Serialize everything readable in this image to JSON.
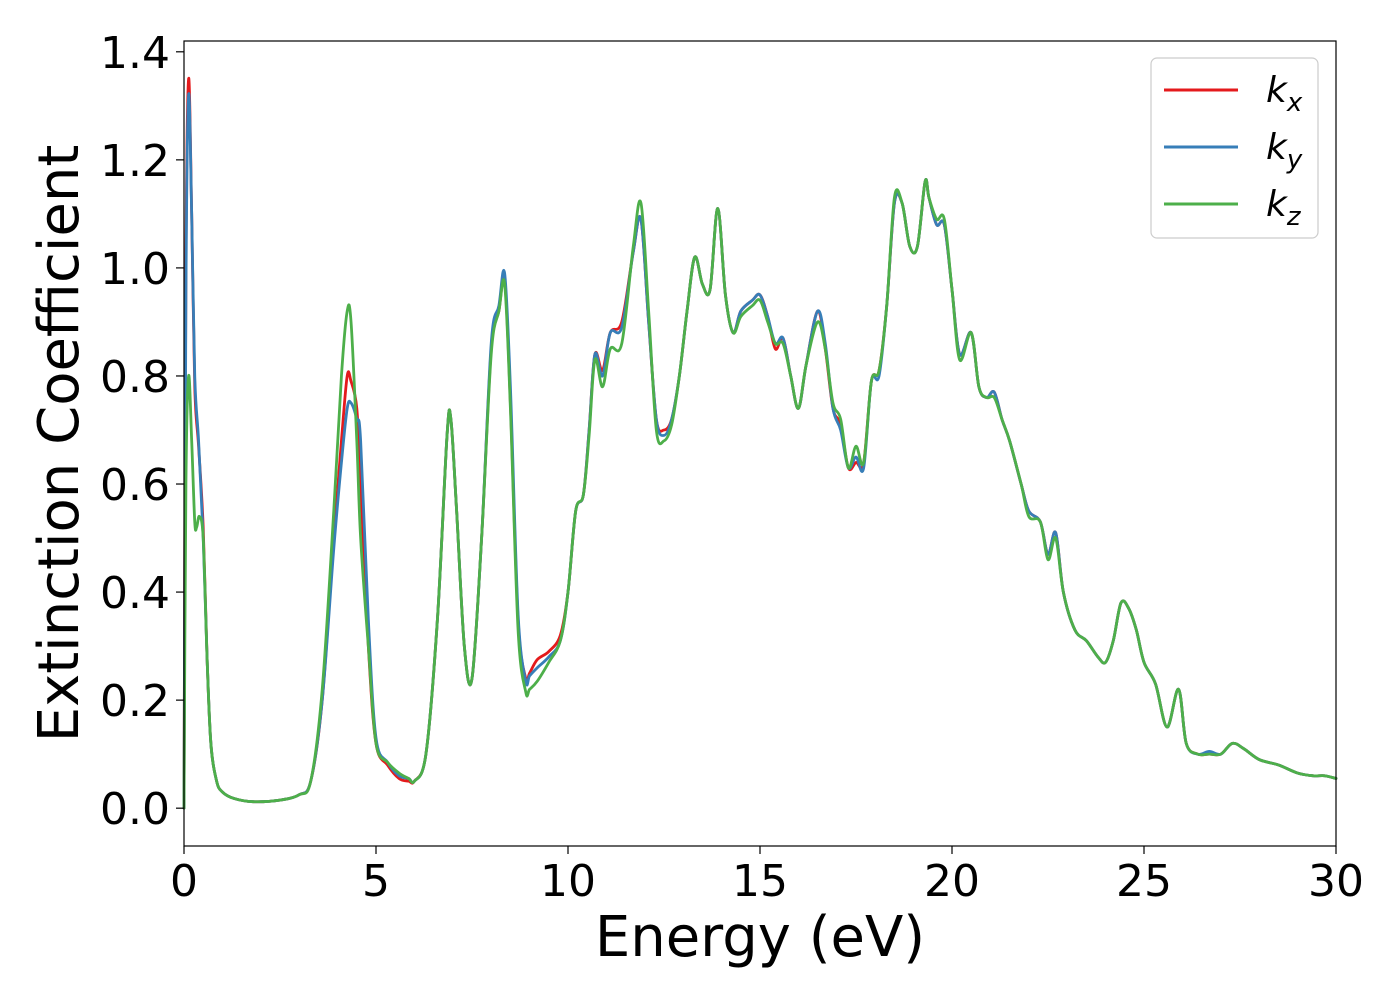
{
  "chart_data": {
    "type": "line",
    "xlabel": "Energy (eV)",
    "ylabel": "Extinction Coefficient",
    "xlim": [
      0,
      30
    ],
    "ylim": [
      -0.07,
      1.42
    ],
    "xticks": [
      "0",
      "5",
      "10",
      "15",
      "20",
      "25",
      "30"
    ],
    "yticks": [
      "0.0",
      "0.2",
      "0.4",
      "0.6",
      "0.8",
      "1.0",
      "1.2",
      "1.4"
    ],
    "grid": false,
    "legend_position": "top-right",
    "series": [
      {
        "name": "k",
        "subscript": "x",
        "color": "#e41a1c",
        "x": [
          0,
          0.05,
          0.12,
          0.2,
          0.28,
          0.38,
          0.5,
          0.6,
          0.7,
          0.85,
          1.0,
          1.3,
          1.8,
          2.5,
          3.0,
          3.3,
          3.6,
          3.9,
          4.1,
          4.25,
          4.35,
          4.5,
          4.6,
          4.8,
          5.0,
          5.3,
          5.6,
          5.85,
          6.0,
          6.3,
          6.6,
          6.85,
          6.95,
          7.1,
          7.3,
          7.5,
          7.75,
          8.0,
          8.2,
          8.35,
          8.5,
          8.7,
          8.9,
          9.0,
          9.2,
          9.5,
          9.8,
          10.0,
          10.2,
          10.4,
          10.55,
          10.7,
          10.9,
          11.1,
          11.4,
          11.7,
          11.9,
          12.1,
          12.3,
          12.5,
          12.7,
          12.9,
          13.1,
          13.3,
          13.5,
          13.7,
          13.9,
          14.1,
          14.3,
          14.5,
          14.8,
          15.0,
          15.2,
          15.4,
          15.6,
          15.8,
          16.0,
          16.2,
          16.5,
          16.7,
          16.9,
          17.1,
          17.3,
          17.5,
          17.7,
          17.9,
          18.1,
          18.3,
          18.5,
          18.7,
          18.9,
          19.1,
          19.3,
          19.4,
          19.6,
          19.8,
          20.0,
          20.2,
          20.5,
          20.7,
          20.9,
          21.1,
          21.3,
          21.5,
          21.8,
          22.0,
          22.3,
          22.5,
          22.7,
          22.9,
          23.2,
          23.5,
          23.8,
          24.0,
          24.2,
          24.4,
          24.6,
          24.8,
          25.0,
          25.3,
          25.6,
          25.9,
          26.1,
          26.4,
          26.7,
          27.0,
          27.3,
          27.6,
          28.0,
          28.5,
          29.0,
          29.4,
          29.7,
          30.0
        ],
        "y": [
          0.0,
          1.0,
          1.35,
          1.1,
          0.78,
          0.67,
          0.52,
          0.28,
          0.12,
          0.05,
          0.03,
          0.018,
          0.012,
          0.015,
          0.025,
          0.05,
          0.2,
          0.5,
          0.68,
          0.8,
          0.79,
          0.74,
          0.6,
          0.3,
          0.12,
          0.08,
          0.055,
          0.05,
          0.05,
          0.1,
          0.35,
          0.69,
          0.72,
          0.55,
          0.3,
          0.24,
          0.5,
          0.85,
          0.92,
          0.98,
          0.75,
          0.35,
          0.24,
          0.25,
          0.275,
          0.29,
          0.32,
          0.4,
          0.55,
          0.58,
          0.7,
          0.84,
          0.81,
          0.88,
          0.9,
          1.03,
          1.09,
          0.9,
          0.72,
          0.7,
          0.72,
          0.8,
          0.92,
          1.02,
          0.97,
          0.96,
          1.11,
          0.95,
          0.88,
          0.92,
          0.94,
          0.95,
          0.91,
          0.85,
          0.87,
          0.8,
          0.74,
          0.82,
          0.92,
          0.85,
          0.74,
          0.71,
          0.63,
          0.64,
          0.64,
          0.79,
          0.81,
          0.93,
          1.12,
          1.12,
          1.04,
          1.04,
          1.16,
          1.13,
          1.08,
          1.08,
          0.96,
          0.84,
          0.88,
          0.78,
          0.76,
          0.77,
          0.72,
          0.68,
          0.6,
          0.55,
          0.53,
          0.47,
          0.51,
          0.4,
          0.33,
          0.31,
          0.28,
          0.27,
          0.31,
          0.38,
          0.37,
          0.33,
          0.27,
          0.23,
          0.15,
          0.22,
          0.12,
          0.1,
          0.1,
          0.1,
          0.12,
          0.11,
          0.09,
          0.08,
          0.065,
          0.06,
          0.06,
          0.055
        ]
      },
      {
        "name": "k",
        "subscript": "y",
        "color": "#377eb8",
        "x": [
          0,
          0.05,
          0.12,
          0.2,
          0.28,
          0.38,
          0.5,
          0.6,
          0.7,
          0.85,
          1.0,
          1.3,
          1.8,
          2.5,
          3.0,
          3.3,
          3.6,
          3.9,
          4.1,
          4.25,
          4.35,
          4.5,
          4.6,
          4.8,
          5.0,
          5.3,
          5.6,
          5.85,
          6.0,
          6.3,
          6.6,
          6.85,
          6.95,
          7.1,
          7.3,
          7.5,
          7.75,
          8.0,
          8.2,
          8.35,
          8.5,
          8.7,
          8.9,
          9.0,
          9.2,
          9.5,
          9.8,
          10.0,
          10.2,
          10.4,
          10.55,
          10.7,
          10.9,
          11.1,
          11.4,
          11.7,
          11.9,
          12.1,
          12.3,
          12.5,
          12.7,
          12.9,
          13.1,
          13.3,
          13.5,
          13.7,
          13.9,
          14.1,
          14.3,
          14.5,
          14.8,
          15.0,
          15.2,
          15.4,
          15.6,
          15.8,
          16.0,
          16.2,
          16.5,
          16.7,
          16.9,
          17.1,
          17.3,
          17.5,
          17.7,
          17.9,
          18.1,
          18.3,
          18.5,
          18.7,
          18.9,
          19.1,
          19.3,
          19.4,
          19.6,
          19.8,
          20.0,
          20.2,
          20.5,
          20.7,
          20.9,
          21.1,
          21.3,
          21.5,
          21.8,
          22.0,
          22.3,
          22.5,
          22.7,
          22.9,
          23.2,
          23.5,
          23.8,
          24.0,
          24.2,
          24.4,
          24.6,
          24.8,
          25.0,
          25.3,
          25.6,
          25.9,
          26.1,
          26.4,
          26.7,
          27.0,
          27.3,
          27.6,
          28.0,
          28.5,
          29.0,
          29.4,
          29.7,
          30.0
        ],
        "y": [
          0.0,
          0.95,
          1.32,
          1.1,
          0.8,
          0.68,
          0.5,
          0.28,
          0.12,
          0.05,
          0.03,
          0.018,
          0.012,
          0.015,
          0.025,
          0.05,
          0.2,
          0.48,
          0.64,
          0.74,
          0.75,
          0.72,
          0.68,
          0.35,
          0.13,
          0.085,
          0.06,
          0.055,
          0.05,
          0.1,
          0.35,
          0.69,
          0.72,
          0.55,
          0.3,
          0.24,
          0.5,
          0.86,
          0.93,
          0.99,
          0.78,
          0.36,
          0.235,
          0.245,
          0.26,
          0.28,
          0.31,
          0.4,
          0.55,
          0.58,
          0.7,
          0.84,
          0.8,
          0.88,
          0.89,
          1.03,
          1.09,
          0.9,
          0.72,
          0.69,
          0.72,
          0.8,
          0.92,
          1.02,
          0.97,
          0.96,
          1.11,
          0.95,
          0.88,
          0.92,
          0.94,
          0.95,
          0.91,
          0.86,
          0.87,
          0.8,
          0.74,
          0.82,
          0.92,
          0.86,
          0.74,
          0.7,
          0.63,
          0.65,
          0.63,
          0.79,
          0.8,
          0.93,
          1.12,
          1.12,
          1.04,
          1.04,
          1.16,
          1.13,
          1.08,
          1.08,
          0.96,
          0.84,
          0.88,
          0.78,
          0.76,
          0.77,
          0.72,
          0.68,
          0.6,
          0.55,
          0.53,
          0.47,
          0.51,
          0.4,
          0.33,
          0.31,
          0.28,
          0.27,
          0.31,
          0.38,
          0.37,
          0.33,
          0.27,
          0.23,
          0.15,
          0.22,
          0.12,
          0.1,
          0.105,
          0.1,
          0.12,
          0.11,
          0.09,
          0.08,
          0.065,
          0.06,
          0.06,
          0.055
        ]
      },
      {
        "name": "k",
        "subscript": "z",
        "color": "#4daf4a",
        "x": [
          0,
          0.05,
          0.12,
          0.2,
          0.28,
          0.33,
          0.4,
          0.5,
          0.6,
          0.7,
          0.85,
          1.0,
          1.3,
          1.8,
          2.5,
          3.0,
          3.3,
          3.6,
          3.9,
          4.1,
          4.25,
          4.35,
          4.5,
          4.6,
          4.8,
          5.0,
          5.3,
          5.6,
          5.85,
          6.0,
          6.3,
          6.6,
          6.85,
          6.95,
          7.1,
          7.3,
          7.5,
          7.75,
          8.0,
          8.2,
          8.35,
          8.5,
          8.7,
          8.9,
          9.0,
          9.2,
          9.5,
          9.8,
          10.0,
          10.2,
          10.4,
          10.55,
          10.7,
          10.9,
          11.1,
          11.4,
          11.7,
          11.9,
          12.1,
          12.3,
          12.5,
          12.7,
          12.9,
          13.1,
          13.3,
          13.5,
          13.7,
          13.9,
          14.1,
          14.3,
          14.5,
          14.8,
          15.0,
          15.2,
          15.4,
          15.6,
          15.8,
          16.0,
          16.2,
          16.5,
          16.7,
          16.9,
          17.1,
          17.3,
          17.5,
          17.7,
          17.9,
          18.1,
          18.3,
          18.5,
          18.7,
          18.9,
          19.1,
          19.3,
          19.4,
          19.6,
          19.8,
          20.0,
          20.2,
          20.5,
          20.7,
          20.9,
          21.1,
          21.3,
          21.5,
          21.8,
          22.0,
          22.3,
          22.5,
          22.7,
          22.9,
          23.2,
          23.5,
          23.8,
          24.0,
          24.2,
          24.4,
          24.6,
          24.8,
          25.0,
          25.3,
          25.6,
          25.9,
          26.1,
          26.4,
          26.7,
          27.0,
          27.3,
          27.6,
          28.0,
          28.5,
          29.0,
          29.4,
          29.7,
          30.0
        ],
        "y": [
          0.0,
          0.6,
          0.8,
          0.68,
          0.53,
          0.52,
          0.54,
          0.5,
          0.28,
          0.12,
          0.05,
          0.03,
          0.018,
          0.012,
          0.015,
          0.025,
          0.05,
          0.22,
          0.55,
          0.8,
          0.92,
          0.9,
          0.68,
          0.5,
          0.3,
          0.12,
          0.085,
          0.065,
          0.055,
          0.05,
          0.1,
          0.35,
          0.69,
          0.72,
          0.55,
          0.3,
          0.24,
          0.5,
          0.84,
          0.92,
          0.97,
          0.74,
          0.33,
          0.215,
          0.22,
          0.235,
          0.27,
          0.31,
          0.4,
          0.55,
          0.58,
          0.69,
          0.83,
          0.78,
          0.85,
          0.86,
          1.04,
          1.12,
          0.92,
          0.7,
          0.68,
          0.71,
          0.8,
          0.92,
          1.02,
          0.97,
          0.96,
          1.11,
          0.95,
          0.88,
          0.91,
          0.93,
          0.94,
          0.9,
          0.86,
          0.86,
          0.8,
          0.74,
          0.82,
          0.9,
          0.85,
          0.75,
          0.72,
          0.63,
          0.67,
          0.64,
          0.79,
          0.81,
          0.93,
          1.13,
          1.12,
          1.04,
          1.04,
          1.16,
          1.13,
          1.09,
          1.09,
          0.96,
          0.83,
          0.88,
          0.78,
          0.76,
          0.76,
          0.72,
          0.68,
          0.6,
          0.54,
          0.53,
          0.46,
          0.5,
          0.4,
          0.33,
          0.31,
          0.28,
          0.27,
          0.31,
          0.38,
          0.37,
          0.33,
          0.27,
          0.23,
          0.15,
          0.22,
          0.12,
          0.1,
          0.1,
          0.1,
          0.12,
          0.11,
          0.09,
          0.08,
          0.065,
          0.06,
          0.06,
          0.055
        ]
      }
    ]
  }
}
